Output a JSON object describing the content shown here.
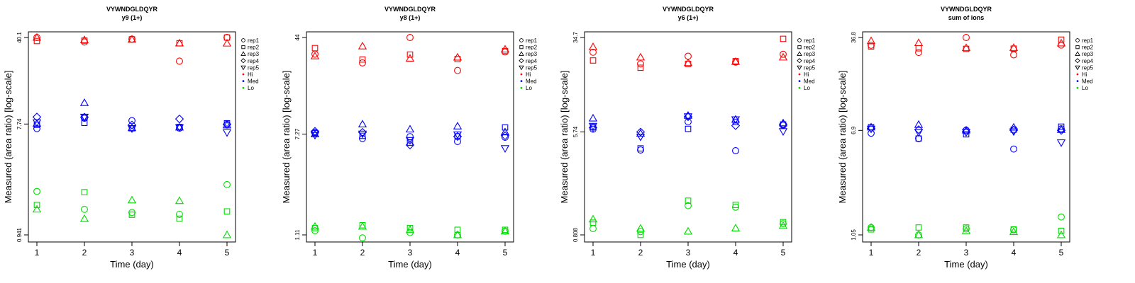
{
  "chart_data": [
    {
      "type": "scatter",
      "title": "VYWNDGLDQYR",
      "subtitle": "y9 (1+)",
      "xlabel": "Time (day)",
      "ylabel": "Measured (area ratio) [log-scale]",
      "x_ticks": [
        "1",
        "2",
        "3",
        "4",
        "5"
      ],
      "y_ticks": [
        "0.941",
        "7.74",
        "40.1"
      ],
      "y_tick_values": [
        0.941,
        7.74,
        40.1
      ],
      "ylim": [
        0.941,
        40.1
      ],
      "log_scale_y": true,
      "grid": false,
      "legend_position": "right",
      "series": [
        {
          "rep": "rep1",
          "group": "Hi",
          "values": [
            40.1,
            36.8,
            38.9,
            25.6,
            40.1
          ]
        },
        {
          "rep": "rep2",
          "group": "Hi",
          "values": [
            37.5,
            37.8,
            38.7,
            35.9,
            40.1
          ]
        },
        {
          "rep": "rep3",
          "group": "Hi",
          "values": [
            40.1,
            38.3,
            38.6,
            36.0,
            35.9
          ]
        },
        {
          "rep": "rep1",
          "group": "Med",
          "values": [
            7.1,
            8.64,
            8.26,
            7.16,
            7.69
          ]
        },
        {
          "rep": "rep2",
          "group": "Med",
          "values": [
            7.62,
            7.91,
            7.14,
            7.32,
            7.85
          ]
        },
        {
          "rep": "rep3",
          "group": "Med",
          "values": [
            7.82,
            11.59,
            7.19,
            7.27,
            7.58
          ]
        },
        {
          "rep": "rep4",
          "group": "Med",
          "values": [
            8.84,
            8.81,
            7.6,
            8.52,
            7.69
          ]
        },
        {
          "rep": "rep5",
          "group": "Med",
          "values": [
            7.96,
            8.85,
            7.1,
            7.25,
            6.59
          ]
        },
        {
          "rep": "rep1",
          "group": "Lo",
          "values": [
            2.15,
            1.53,
            1.44,
            1.39,
            2.45
          ]
        },
        {
          "rep": "rep2",
          "group": "Lo",
          "values": [
            1.66,
            2.12,
            1.38,
            1.28,
            1.47
          ]
        },
        {
          "rep": "rep3",
          "group": "Lo",
          "values": [
            1.53,
            1.28,
            1.82,
            1.8,
            0.941
          ]
        }
      ]
    },
    {
      "type": "scatter",
      "title": "VYWNDGLDQYR",
      "subtitle": "y8 (1+)",
      "xlabel": "Time (day)",
      "ylabel": "Measured (area ratio) [log-scale]",
      "x_ticks": [
        "1",
        "2",
        "3",
        "4",
        "5"
      ],
      "y_ticks": [
        "1.11",
        "7.27",
        "44"
      ],
      "y_tick_values": [
        1.11,
        7.27,
        44
      ],
      "ylim": [
        1.11,
        44
      ],
      "log_scale_y": true,
      "grid": false,
      "legend_position": "right",
      "series": [
        {
          "rep": "rep1",
          "group": "Hi",
          "values": [
            32.3,
            27.4,
            44.0,
            23.8,
            33.6
          ]
        },
        {
          "rep": "rep2",
          "group": "Hi",
          "values": [
            36.1,
            29.2,
            32.0,
            29.4,
            34.2
          ]
        },
        {
          "rep": "rep3",
          "group": "Hi",
          "values": [
            31.1,
            37.4,
            29.8,
            30.4,
            35.3
          ]
        },
        {
          "rep": "rep1",
          "group": "Med",
          "values": [
            7.51,
            6.69,
            6.93,
            6.33,
            6.85
          ]
        },
        {
          "rep": "rep2",
          "group": "Med",
          "values": [
            7.4,
            7.04,
            6.2,
            6.96,
            8.23
          ]
        },
        {
          "rep": "rep3",
          "group": "Med",
          "values": [
            7.27,
            8.74,
            7.95,
            8.42,
            7.55
          ]
        },
        {
          "rep": "rep4",
          "group": "Med",
          "values": [
            7.65,
            7.51,
            5.93,
            6.95,
            7.06
          ]
        },
        {
          "rep": "rep5",
          "group": "Med",
          "values": [
            7.12,
            7.3,
            6.48,
            7.19,
            5.57
          ]
        },
        {
          "rep": "rep1",
          "group": "Lo",
          "values": [
            1.2,
            1.05,
            1.16,
            1.11,
            1.19
          ]
        },
        {
          "rep": "rep2",
          "group": "Lo",
          "values": [
            1.26,
            1.33,
            1.26,
            1.22,
            1.22
          ]
        },
        {
          "rep": "rep3",
          "group": "Lo",
          "values": [
            1.3,
            1.3,
            1.22,
            1.11,
            1.19
          ]
        }
      ]
    },
    {
      "type": "scatter",
      "title": "VYWNDGLDQYR",
      "subtitle": "y6 (1+)",
      "xlabel": "Time (day)",
      "ylabel": "Measured (area ratio) [log-scale]",
      "x_ticks": [
        "1",
        "2",
        "3",
        "4",
        "5"
      ],
      "y_ticks": [
        "0.808",
        "5.74",
        "34.7"
      ],
      "y_tick_values": [
        0.808,
        5.74,
        34.7
      ],
      "ylim": [
        0.808,
        34.7
      ],
      "log_scale_y": true,
      "grid": false,
      "legend_position": "right",
      "series": [
        {
          "rep": "rep1",
          "group": "Hi",
          "values": [
            26.2,
            21.0,
            24.3,
            21.7,
            25.2
          ]
        },
        {
          "rep": "rep2",
          "group": "Hi",
          "values": [
            22.4,
            19.5,
            21.0,
            22.1,
            33.8
          ]
        },
        {
          "rep": "rep3",
          "group": "Hi",
          "values": [
            29.0,
            23.8,
            21.4,
            21.9,
            23.8
          ]
        },
        {
          "rep": "rep1",
          "group": "Med",
          "values": [
            6.05,
            4.07,
            6.97,
            4.02,
            6.53
          ]
        },
        {
          "rep": "rep2",
          "group": "Med",
          "values": [
            6.31,
            4.2,
            6.09,
            6.96,
            6.62
          ]
        },
        {
          "rep": "rep3",
          "group": "Med",
          "values": [
            7.45,
            5.58,
            7.85,
            7.29,
            6.8
          ]
        },
        {
          "rep": "rep4",
          "group": "Med",
          "values": [
            6.24,
            5.73,
            7.68,
            6.47,
            6.65
          ]
        },
        {
          "rep": "rep5",
          "group": "Med",
          "values": [
            6.42,
            5.23,
            7.7,
            7.27,
            5.8
          ]
        },
        {
          "rep": "rep1",
          "group": "Lo",
          "values": [
            0.911,
            0.86,
            1.41,
            1.37,
            1.0
          ]
        },
        {
          "rep": "rep2",
          "group": "Lo",
          "values": [
            1.02,
            0.808,
            1.55,
            1.43,
            1.03
          ]
        },
        {
          "rep": "rep3",
          "group": "Lo",
          "values": [
            1.09,
            0.914,
            0.864,
            0.918,
            0.962
          ]
        }
      ]
    },
    {
      "type": "scatter",
      "title": "VYWNDGLDQYR",
      "subtitle": "sum of ions",
      "xlabel": "Time (day)",
      "ylabel": "Measured (area ratio) [log-scale]",
      "x_ticks": [
        "1",
        "2",
        "3",
        "4",
        "5"
      ],
      "y_ticks": [
        "1.05",
        "6.9",
        "36.8"
      ],
      "y_tick_values": [
        1.05,
        6.9,
        36.8
      ],
      "ylim": [
        1.05,
        36.8
      ],
      "log_scale_y": true,
      "grid": false,
      "legend_position": "right",
      "series": [
        {
          "rep": "rep1",
          "group": "Hi",
          "values": [
            32.0,
            28.1,
            36.8,
            26.9,
            32.1
          ]
        },
        {
          "rep": "rep2",
          "group": "Hi",
          "values": [
            31.3,
            30.3,
            30.0,
            30.1,
            35.4
          ]
        },
        {
          "rep": "rep3",
          "group": "Hi",
          "values": [
            34.6,
            33.4,
            30.5,
            30.6,
            33.2
          ]
        },
        {
          "rep": "rep1",
          "group": "Med",
          "values": [
            6.56,
            5.96,
            6.93,
            4.93,
            7.1
          ]
        },
        {
          "rep": "rep2",
          "group": "Med",
          "values": [
            7.32,
            5.96,
            6.43,
            6.99,
            7.38
          ]
        },
        {
          "rep": "rep3",
          "group": "Med",
          "values": [
            7.31,
            7.66,
            6.92,
            7.28,
            6.99
          ]
        },
        {
          "rep": "rep4",
          "group": "Med",
          "values": [
            7.18,
            6.99,
            6.74,
            6.93,
            6.9
          ]
        },
        {
          "rep": "rep5",
          "group": "Med",
          "values": [
            7.09,
            6.66,
            6.67,
            6.76,
            5.54
          ]
        },
        {
          "rep": "rep1",
          "group": "Lo",
          "values": [
            1.2,
            1.05,
            1.17,
            1.15,
            1.45
          ]
        },
        {
          "rep": "rep2",
          "group": "Lo",
          "values": [
            1.16,
            1.2,
            1.2,
            1.16,
            1.13
          ]
        },
        {
          "rep": "rep3",
          "group": "Lo",
          "values": [
            1.2,
            1.05,
            1.13,
            1.11,
            1.05
          ]
        }
      ]
    }
  ],
  "legend": {
    "entries": [
      {
        "label": "rep1",
        "symbol": "circle"
      },
      {
        "label": "rep2",
        "symbol": "square"
      },
      {
        "label": "rep3",
        "symbol": "triangle-up"
      },
      {
        "label": "rep4",
        "symbol": "diamond"
      },
      {
        "label": "rep5",
        "symbol": "triangle-down"
      },
      {
        "label": "Hi",
        "symbol": "dot",
        "color": "#ff0000"
      },
      {
        "label": "Med",
        "symbol": "dot",
        "color": "#0000ff"
      },
      {
        "label": "Lo",
        "symbol": "dot",
        "color": "#00dd00"
      }
    ]
  },
  "colors": {
    "Hi": "#ff0000",
    "Med": "#0000ff",
    "Lo": "#00dd00"
  },
  "rep_symbols": {
    "rep1": "circle",
    "rep2": "square",
    "rep3": "triangle-up",
    "rep4": "diamond",
    "rep5": "triangle-down"
  }
}
